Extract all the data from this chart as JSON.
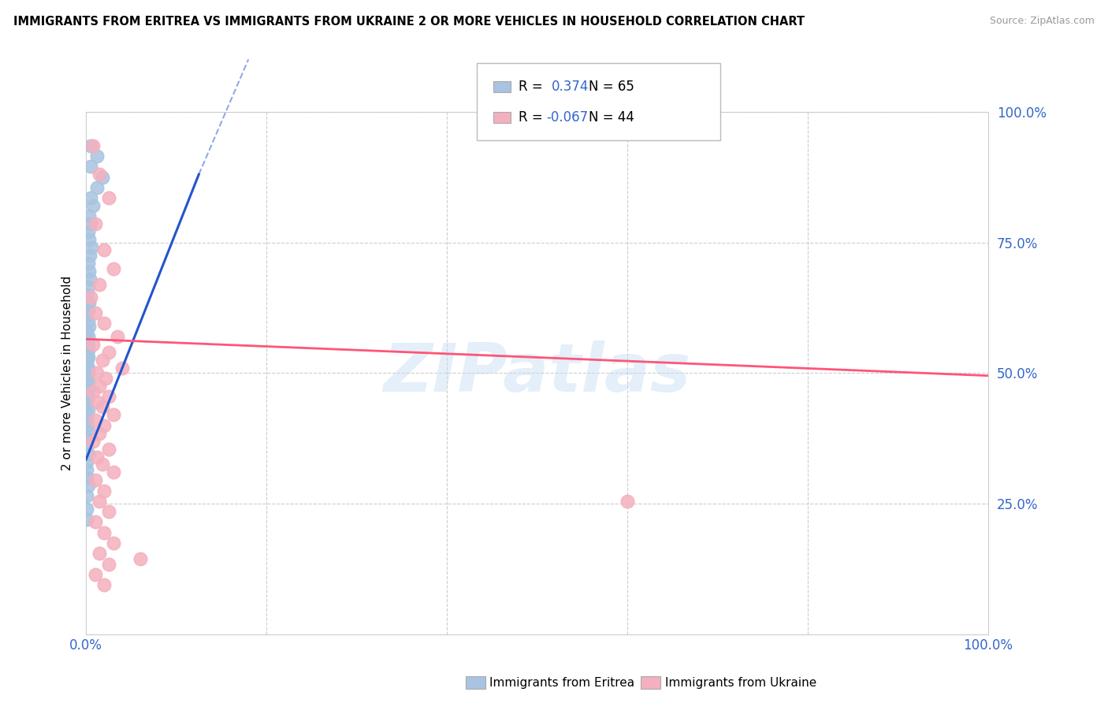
{
  "title": "IMMIGRANTS FROM ERITREA VS IMMIGRANTS FROM UKRAINE 2 OR MORE VEHICLES IN HOUSEHOLD CORRELATION CHART",
  "source": "Source: ZipAtlas.com",
  "ylabel": "2 or more Vehicles in Household",
  "legend_eritrea": "Immigrants from Eritrea",
  "legend_ukraine": "Immigrants from Ukraine",
  "R_eritrea": 0.374,
  "N_eritrea": 65,
  "R_ukraine": -0.067,
  "N_ukraine": 44,
  "eritrea_color": "#a8c4e0",
  "ukraine_color": "#f4b0be",
  "eritrea_line_color": "#2255cc",
  "ukraine_line_color": "#ff5577",
  "background_color": "#ffffff",
  "grid_color": "#c8c8c8",
  "xlim": [
    0,
    1.0
  ],
  "ylim": [
    0,
    1.0
  ],
  "eritrea_trend_x0": 0.0,
  "eritrea_trend_y0": 0.335,
  "eritrea_trend_x1": 0.125,
  "eritrea_trend_y1": 0.88,
  "ukraine_trend_x0": 0.0,
  "ukraine_trend_y0": 0.565,
  "ukraine_trend_x1": 1.0,
  "ukraine_trend_y1": 0.495,
  "eritrea_pts_x": [
    0.005,
    0.012,
    0.005,
    0.018,
    0.012,
    0.005,
    0.008,
    0.003,
    0.005,
    0.002,
    0.003,
    0.006,
    0.004,
    0.002,
    0.003,
    0.004,
    0.002,
    0.001,
    0.003,
    0.002,
    0.001,
    0.002,
    0.003,
    0.001,
    0.002,
    0.001,
    0.001,
    0.002,
    0.001,
    0.002,
    0.001,
    0.001,
    0.002,
    0.001,
    0.001,
    0.001,
    0.002,
    0.001,
    0.002,
    0.001,
    0.001,
    0.002,
    0.001,
    0.001,
    0.002,
    0.001,
    0.001,
    0.002,
    0.001,
    0.001,
    0.002,
    0.001,
    0.001,
    0.001,
    0.002,
    0.001,
    0.001,
    0.002,
    0.001,
    0.001,
    0.001,
    0.002,
    0.001,
    0.001,
    0.001
  ],
  "eritrea_pts_y": [
    0.935,
    0.915,
    0.895,
    0.875,
    0.855,
    0.835,
    0.82,
    0.8,
    0.785,
    0.77,
    0.755,
    0.74,
    0.725,
    0.71,
    0.695,
    0.68,
    0.665,
    0.65,
    0.635,
    0.62,
    0.61,
    0.6,
    0.59,
    0.58,
    0.57,
    0.565,
    0.56,
    0.555,
    0.55,
    0.545,
    0.54,
    0.535,
    0.53,
    0.525,
    0.52,
    0.515,
    0.51,
    0.505,
    0.5,
    0.495,
    0.49,
    0.485,
    0.48,
    0.475,
    0.47,
    0.465,
    0.46,
    0.455,
    0.45,
    0.44,
    0.43,
    0.42,
    0.41,
    0.4,
    0.39,
    0.375,
    0.36,
    0.345,
    0.33,
    0.315,
    0.3,
    0.285,
    0.265,
    0.24,
    0.22
  ],
  "ukraine_pts_x": [
    0.008,
    0.015,
    0.025,
    0.01,
    0.02,
    0.03,
    0.015,
    0.005,
    0.01,
    0.02,
    0.035,
    0.008,
    0.025,
    0.018,
    0.04,
    0.012,
    0.022,
    0.015,
    0.008,
    0.025,
    0.012,
    0.018,
    0.03,
    0.01,
    0.02,
    0.015,
    0.008,
    0.025,
    0.012,
    0.018,
    0.03,
    0.01,
    0.02,
    0.015,
    0.025,
    0.01,
    0.02,
    0.03,
    0.015,
    0.025,
    0.01,
    0.02,
    0.6,
    0.06
  ],
  "ukraine_pts_y": [
    0.935,
    0.88,
    0.835,
    0.785,
    0.735,
    0.7,
    0.67,
    0.645,
    0.615,
    0.595,
    0.57,
    0.555,
    0.54,
    0.525,
    0.51,
    0.5,
    0.49,
    0.475,
    0.465,
    0.455,
    0.445,
    0.435,
    0.42,
    0.41,
    0.4,
    0.385,
    0.37,
    0.355,
    0.34,
    0.325,
    0.31,
    0.295,
    0.275,
    0.255,
    0.235,
    0.215,
    0.195,
    0.175,
    0.155,
    0.135,
    0.115,
    0.095,
    0.255,
    0.145
  ]
}
